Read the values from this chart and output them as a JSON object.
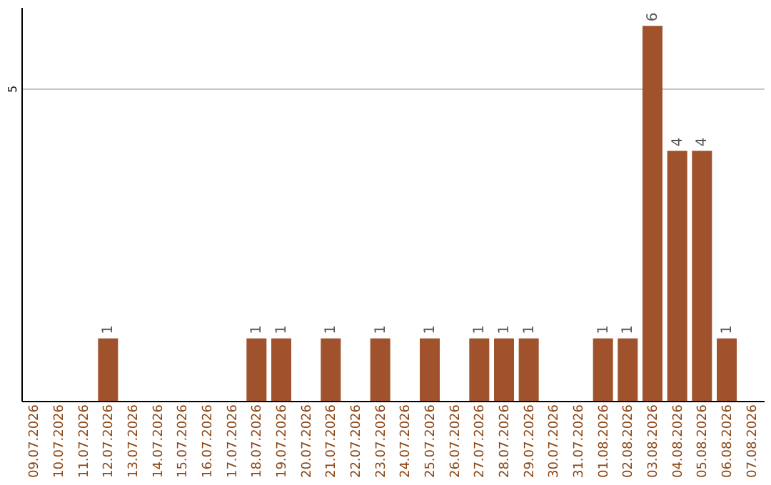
{
  "chart_data": {
    "type": "bar",
    "categories": [
      "09.07.2026",
      "10.07.2026",
      "11.07.2026",
      "12.07.2026",
      "13.07.2026",
      "14.07.2026",
      "15.07.2026",
      "16.07.2026",
      "17.07.2026",
      "18.07.2026",
      "19.07.2026",
      "20.07.2026",
      "21.07.2026",
      "22.07.2026",
      "23.07.2026",
      "24.07.2026",
      "25.07.2026",
      "26.07.2026",
      "27.07.2026",
      "28.07.2026",
      "29.07.2026",
      "30.07.2026",
      "31.07.2026",
      "01.08.2026",
      "02.08.2026",
      "03.08.2026",
      "04.08.2026",
      "05.08.2026",
      "06.08.2026",
      "07.08.2026"
    ],
    "values": [
      0,
      0,
      0,
      1,
      0,
      0,
      0,
      0,
      0,
      1,
      1,
      0,
      1,
      0,
      1,
      0,
      1,
      0,
      1,
      1,
      1,
      0,
      0,
      1,
      1,
      6,
      4,
      4,
      1,
      0
    ],
    "value_labels": [
      null,
      null,
      null,
      "1",
      null,
      null,
      null,
      null,
      null,
      "1",
      "1",
      null,
      "1",
      null,
      "1",
      null,
      "1",
      null,
      "1",
      "1",
      "1",
      null,
      null,
      "1",
      "1",
      "6",
      "4",
      "4",
      "1",
      null
    ],
    "color": "#a0522d",
    "ylim": [
      0,
      6.3
    ],
    "yticks": [
      5
    ],
    "grid": "y"
  }
}
